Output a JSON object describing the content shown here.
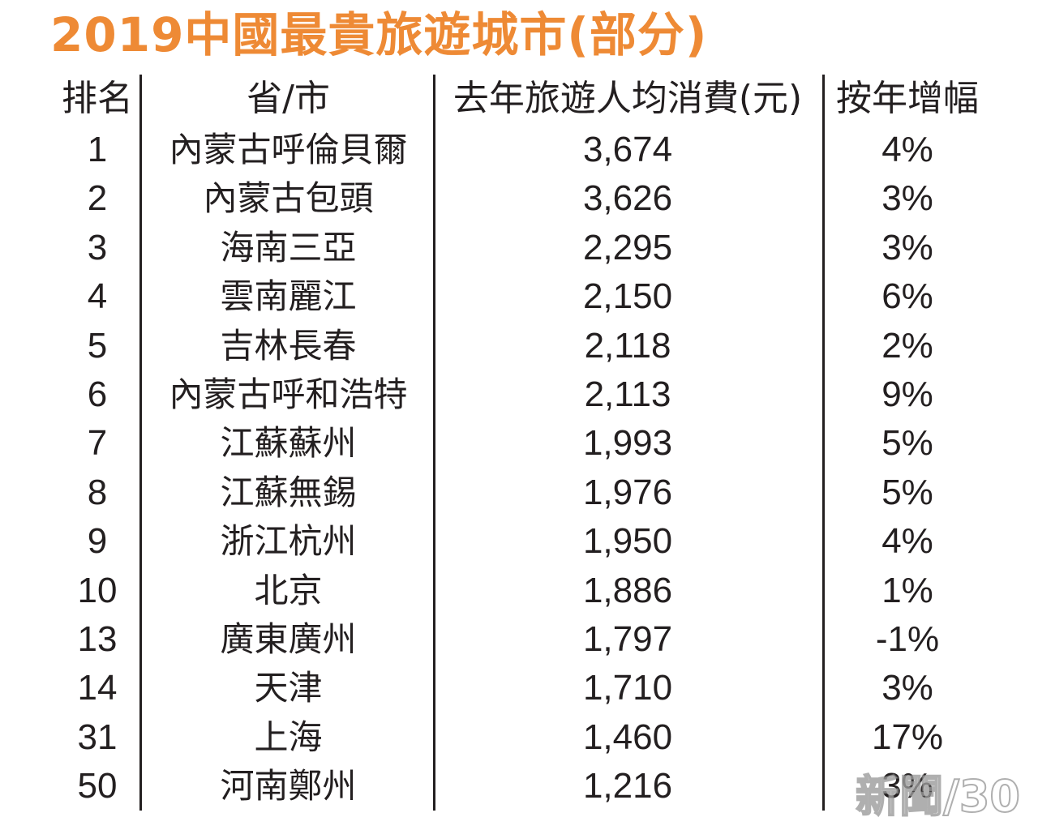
{
  "title": "2019中國最貴旅遊城市(部分)",
  "colors": {
    "title": "#ee8a35",
    "text": "#231f20",
    "background": "#ffffff"
  },
  "table": {
    "headers": {
      "rank": "排名",
      "city": "省/市",
      "spend": "去年旅遊人均消費(元)",
      "growth": "按年增幅"
    },
    "rows": [
      {
        "rank": "1",
        "city": "內蒙古呼倫貝爾",
        "spend": "3,674",
        "growth": "4%"
      },
      {
        "rank": "2",
        "city": "內蒙古包頭",
        "spend": "3,626",
        "growth": "3%"
      },
      {
        "rank": "3",
        "city": "海南三亞",
        "spend": "2,295",
        "growth": "3%"
      },
      {
        "rank": "4",
        "city": "雲南麗江",
        "spend": "2,150",
        "growth": "6%"
      },
      {
        "rank": "5",
        "city": "吉林長春",
        "spend": "2,118",
        "growth": "2%"
      },
      {
        "rank": "6",
        "city": "內蒙古呼和浩特",
        "spend": "2,113",
        "growth": "9%"
      },
      {
        "rank": "7",
        "city": "江蘇蘇州",
        "spend": "1,993",
        "growth": "5%"
      },
      {
        "rank": "8",
        "city": "江蘇無錫",
        "spend": "1,976",
        "growth": "5%"
      },
      {
        "rank": "9",
        "city": "浙江杭州",
        "spend": "1,950",
        "growth": "4%"
      },
      {
        "rank": "10",
        "city": "北京",
        "spend": "1,886",
        "growth": "1%"
      },
      {
        "rank": "13",
        "city": "廣東廣州",
        "spend": "1,797",
        "growth": "-1%"
      },
      {
        "rank": "14",
        "city": "天津",
        "spend": "1,710",
        "growth": "3%"
      },
      {
        "rank": "31",
        "city": "上海",
        "spend": "1,460",
        "growth": "17%"
      },
      {
        "rank": "50",
        "city": "河南鄭州",
        "spend": "1,216",
        "growth": "3%"
      }
    ]
  },
  "watermark": "新聞/30"
}
